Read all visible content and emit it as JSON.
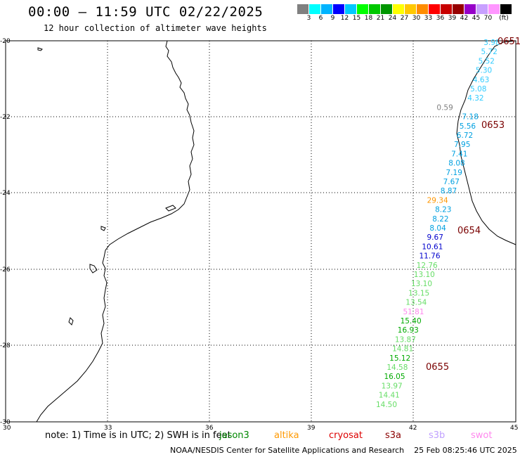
{
  "header": {
    "title": "00:00 – 11:59 UTC 02/22/2025",
    "subtitle": "12 hour collection of altimeter wave heights"
  },
  "colorbar": {
    "colors": [
      "#808080",
      "#00ffff",
      "#00b4ff",
      "#0000ff",
      "#00c8ff",
      "#00ff00",
      "#00c800",
      "#009600",
      "#ffff00",
      "#ffc800",
      "#ff8c00",
      "#ff0000",
      "#c80000",
      "#960000",
      "#9600c8",
      "#c8a0ff",
      "#ff96ff",
      "#000000"
    ],
    "ticks": [
      "3",
      "6",
      "9",
      "12",
      "15",
      "18",
      "21",
      "24",
      "27",
      "30",
      "33",
      "36",
      "39",
      "42",
      "45",
      "70"
    ],
    "unit": "(ft)"
  },
  "map": {
    "lat_labels": [
      "-20",
      "-22",
      "-24",
      "-26",
      "-28",
      "-30"
    ],
    "lon_labels": [
      "30",
      "33",
      "36",
      "39",
      "42",
      "45"
    ]
  },
  "observations": [
    {
      "v": "3.98",
      "c": "#33ccff"
    },
    {
      "v": "5.72",
      "c": "#33ccff"
    },
    {
      "v": "5.52",
      "c": "#33ccff"
    },
    {
      "v": "5.30",
      "c": "#33ccff"
    },
    {
      "v": "4.63",
      "c": "#33ccff"
    },
    {
      "v": "5.08",
      "c": "#33ccff"
    },
    {
      "v": "4.32",
      "c": "#33ccff"
    },
    {
      "v": "0.59",
      "c": "#808080"
    },
    {
      "v": "7.18",
      "c": "#00a0e0"
    },
    {
      "v": "5.56",
      "c": "#00a0e0"
    },
    {
      "v": "6.72",
      "c": "#00a0e0"
    },
    {
      "v": "7.95",
      "c": "#00a0e0"
    },
    {
      "v": "7.41",
      "c": "#00a0e0"
    },
    {
      "v": "8.08",
      "c": "#00a0e0"
    },
    {
      "v": "7.19",
      "c": "#00a0e0"
    },
    {
      "v": "7.67",
      "c": "#00a0e0"
    },
    {
      "v": "8.87",
      "c": "#00a0e0"
    },
    {
      "v": "29.34",
      "c": "#ff9600"
    },
    {
      "v": "8.23",
      "c": "#00a0e0"
    },
    {
      "v": "8.22",
      "c": "#00a0e0"
    },
    {
      "v": "8.04",
      "c": "#00a0e0"
    },
    {
      "v": "9.67",
      "c": "#0000cc"
    },
    {
      "v": "10.61",
      "c": "#0000cc"
    },
    {
      "v": "11.76",
      "c": "#0000cc"
    },
    {
      "v": "12.76",
      "c": "#66dd66"
    },
    {
      "v": "13.10",
      "c": "#66dd66"
    },
    {
      "v": "13.10",
      "c": "#66dd66"
    },
    {
      "v": "13.15",
      "c": "#66dd66"
    },
    {
      "v": "13.54",
      "c": "#66dd66"
    },
    {
      "v": "51.81",
      "c": "#ff88ee"
    },
    {
      "v": "15.40",
      "c": "#00aa00"
    },
    {
      "v": "16.93",
      "c": "#00aa00"
    },
    {
      "v": "13.87",
      "c": "#66dd66"
    },
    {
      "v": "14.81",
      "c": "#66dd66"
    },
    {
      "v": "15.12",
      "c": "#00aa00"
    },
    {
      "v": "14.58",
      "c": "#66dd66"
    },
    {
      "v": "16.05",
      "c": "#00aa00"
    },
    {
      "v": "13.97",
      "c": "#66dd66"
    },
    {
      "v": "14.41",
      "c": "#66dd66"
    },
    {
      "v": "14.50",
      "c": "#66dd66"
    }
  ],
  "passes": [
    "0651",
    "0653",
    "0654",
    "0655"
  ],
  "footer": {
    "note": "note: 1) Time is in UTC; 2) SWH is in feet",
    "legend": [
      {
        "name": "jason3",
        "color": "#008800"
      },
      {
        "name": "altika",
        "color": "#ff9900"
      },
      {
        "name": "cryosat",
        "color": "#dd0000"
      },
      {
        "name": "s3a",
        "color": "#8b0000"
      },
      {
        "name": "s3b",
        "color": "#c0a0ff"
      },
      {
        "name": "swot",
        "color": "#ff88ee"
      }
    ],
    "credit": "NOAA/NESDIS Center for Satellite Applications and Research    25 Feb 08:25:46 UTC 2025"
  }
}
